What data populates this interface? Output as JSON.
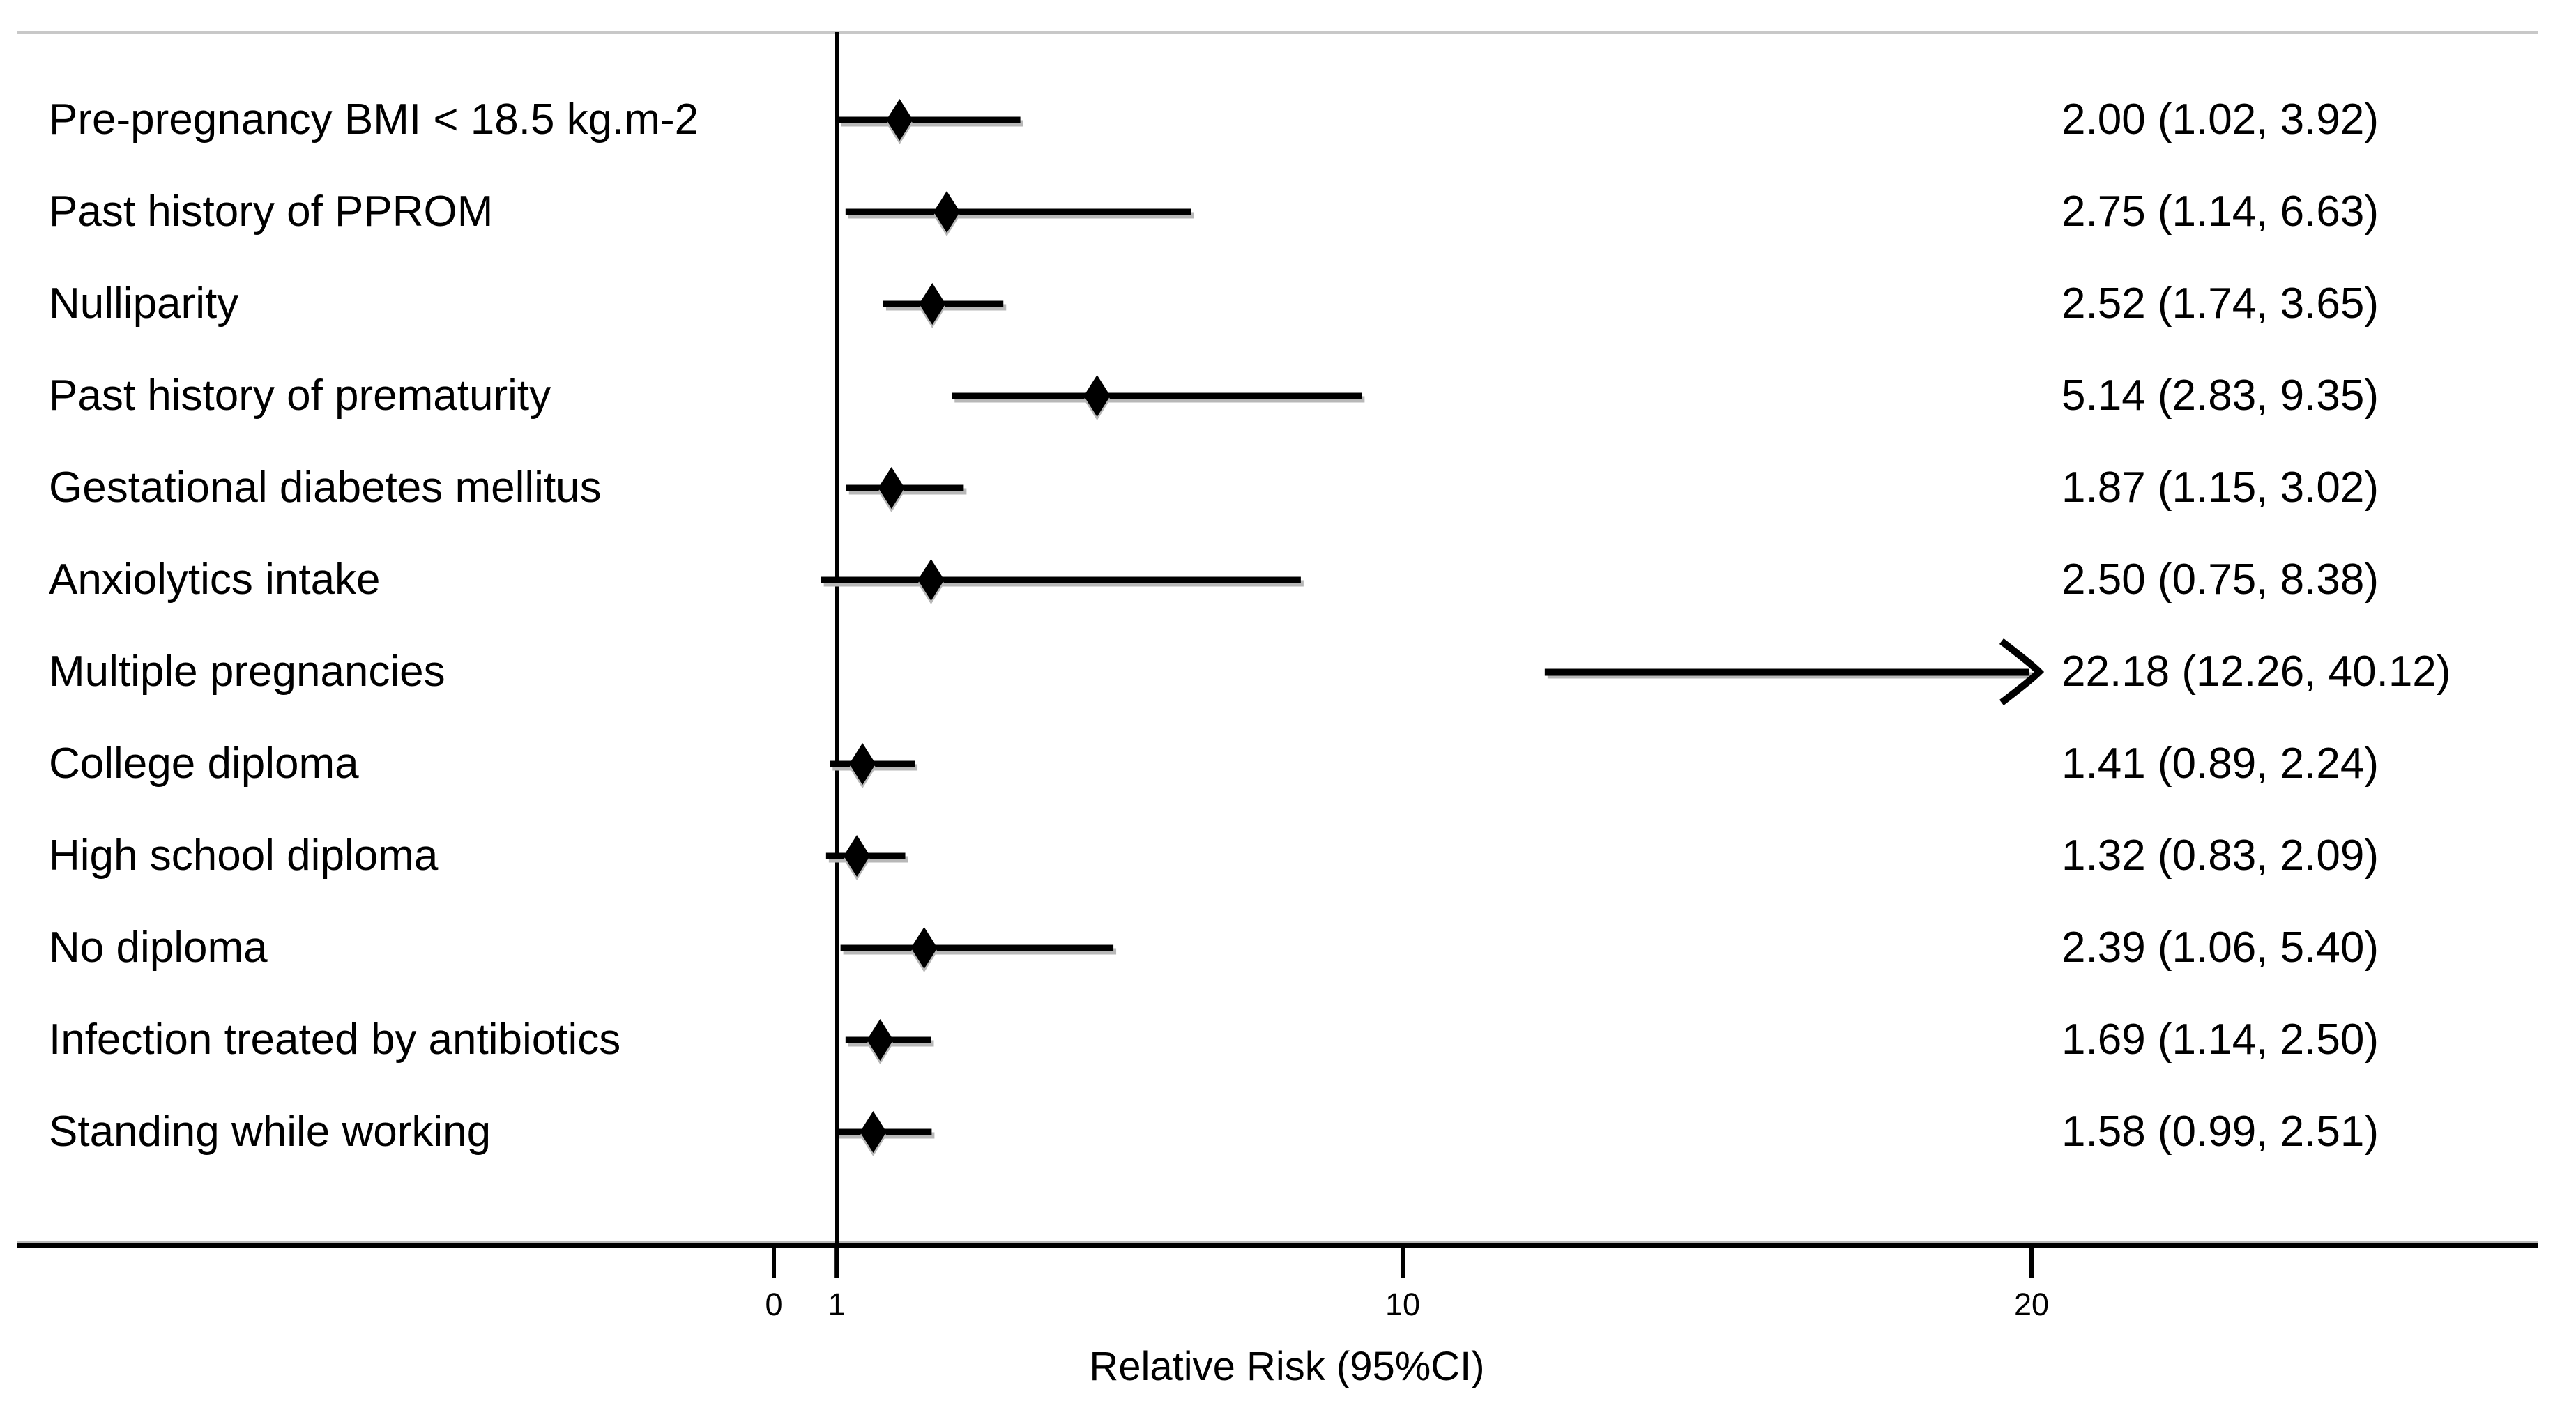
{
  "chart_data": {
    "type": "scatter",
    "subtype": "forest-plot",
    "title": "",
    "xlabel": "Relative Risk (95%CI)",
    "ylabel": "",
    "xlim": [
      0,
      28
    ],
    "axis_ticks": [
      0,
      1,
      10,
      20
    ],
    "reference_line_x": 1,
    "grid": false,
    "legend": "none",
    "rows": [
      {
        "label": "Pre-pregnancy BMI < 18.5 kg.m-2",
        "estimate": 2.0,
        "ci_lower": 1.02,
        "ci_upper": 3.92,
        "value_text": "2.00 (1.02, 3.92)",
        "offscale": false
      },
      {
        "label": "Past history of PPROM",
        "estimate": 2.75,
        "ci_lower": 1.14,
        "ci_upper": 6.63,
        "value_text": "2.75 (1.14, 6.63)",
        "offscale": false
      },
      {
        "label": "Nulliparity",
        "estimate": 2.52,
        "ci_lower": 1.74,
        "ci_upper": 3.65,
        "value_text": "2.52 (1.74, 3.65)",
        "offscale": false
      },
      {
        "label": "Past history of prematurity",
        "estimate": 5.14,
        "ci_lower": 2.83,
        "ci_upper": 9.35,
        "value_text": "5.14 (2.83, 9.35)",
        "offscale": false
      },
      {
        "label": "Gestational diabetes mellitus",
        "estimate": 1.87,
        "ci_lower": 1.15,
        "ci_upper": 3.02,
        "value_text": "1.87 (1.15, 3.02)",
        "offscale": false
      },
      {
        "label": "Anxiolytics intake",
        "estimate": 2.5,
        "ci_lower": 0.75,
        "ci_upper": 8.38,
        "value_text": "2.50 (0.75, 8.38)",
        "offscale": false
      },
      {
        "label": "Multiple pregnancies",
        "estimate": 22.18,
        "ci_lower": 12.26,
        "ci_upper": 40.12,
        "value_text": "22.18 (12.26, 40.12)",
        "offscale": true
      },
      {
        "label": "College diploma",
        "estimate": 1.41,
        "ci_lower": 0.89,
        "ci_upper": 2.24,
        "value_text": "1.41 (0.89, 2.24)",
        "offscale": false
      },
      {
        "label": "High school diploma",
        "estimate": 1.32,
        "ci_lower": 0.83,
        "ci_upper": 2.09,
        "value_text": "1.32 (0.83, 2.09)",
        "offscale": false
      },
      {
        "label": "No diploma",
        "estimate": 2.39,
        "ci_lower": 1.06,
        "ci_upper": 5.4,
        "value_text": "2.39 (1.06, 5.40)",
        "offscale": false
      },
      {
        "label": "Infection treated by antibiotics",
        "estimate": 1.69,
        "ci_lower": 1.14,
        "ci_upper": 2.5,
        "value_text": "1.69 (1.14, 2.50)",
        "offscale": false
      },
      {
        "label": "Standing while working",
        "estimate": 1.58,
        "ci_lower": 0.99,
        "ci_upper": 2.51,
        "value_text": "1.58 (0.99, 2.51)",
        "offscale": false
      }
    ],
    "colors": {
      "marker": "#000000",
      "line": "#000000",
      "shadow": "#b8b8b8",
      "top_border": "#c8c8c8",
      "text": "#000000",
      "background": "#ffffff"
    }
  }
}
